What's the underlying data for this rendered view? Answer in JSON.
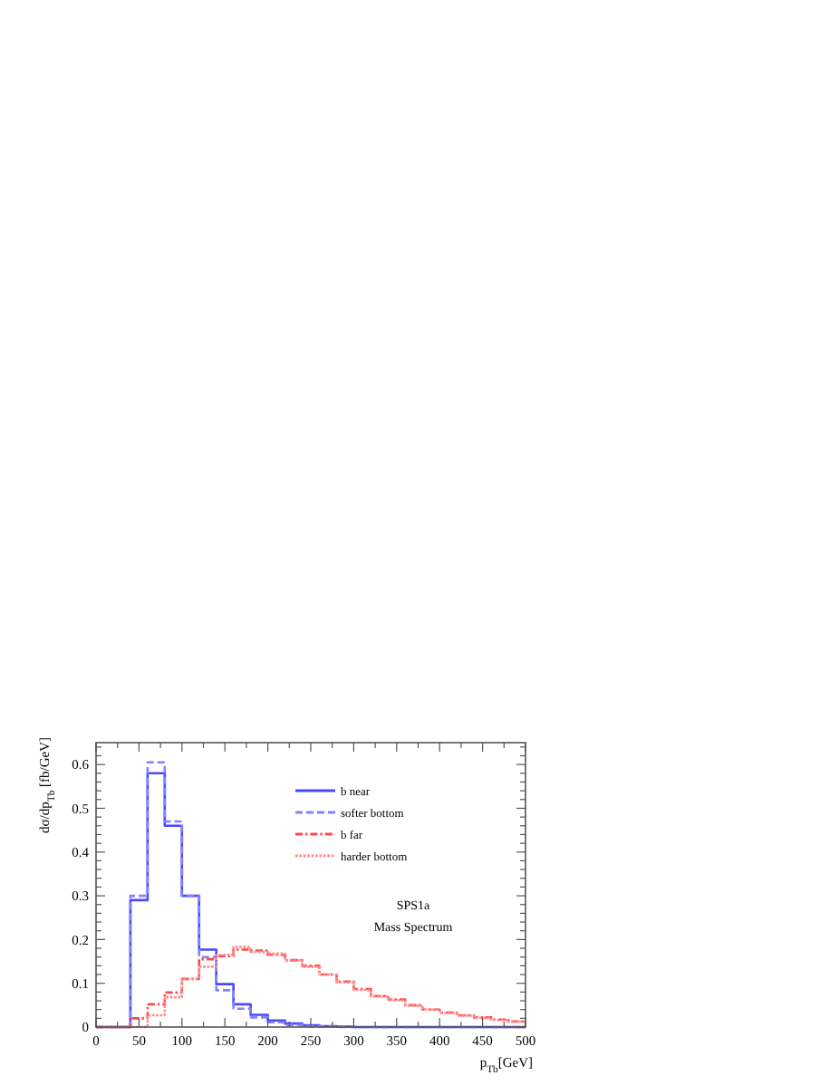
{
  "chart_data": {
    "type": "histogram",
    "xlabel": "p$_{Tb}$[GeV]",
    "ylabel": "dσ/dp$_{Tb}$ [fb/GeV]",
    "bins": [
      0,
      20,
      40,
      60,
      80,
      100,
      120,
      140,
      160,
      180,
      200,
      220,
      240,
      260,
      280,
      300,
      320,
      340,
      360,
      380,
      400,
      420,
      440,
      460,
      480,
      500
    ],
    "series": [
      {
        "name": "b near",
        "color": "#4848ff",
        "line_style": "solid",
        "values": [
          0,
          0,
          0.29,
          0.58,
          0.46,
          0.3,
          0.177,
          0.098,
          0.052,
          0.028,
          0.015,
          0.008,
          0.004,
          0.002,
          0.001,
          0,
          0,
          0,
          0,
          0,
          0,
          0,
          0,
          0,
          0
        ]
      },
      {
        "name": "softer bottom",
        "color": "#8282ff",
        "line_style": "dashed",
        "values": [
          0,
          0,
          0.3,
          0.605,
          0.47,
          0.3,
          0.16,
          0.084,
          0.042,
          0.022,
          0.011,
          0.005,
          0.002,
          0.001,
          0,
          0,
          0,
          0,
          0,
          0,
          0,
          0,
          0,
          0,
          0
        ]
      },
      {
        "name": "b far",
        "color": "#ff4848",
        "line_style": "dashdot",
        "values": [
          0,
          0,
          0.02,
          0.052,
          0.079,
          0.11,
          0.155,
          0.162,
          0.177,
          0.175,
          0.165,
          0.153,
          0.14,
          0.12,
          0.104,
          0.087,
          0.071,
          0.063,
          0.05,
          0.04,
          0.033,
          0.027,
          0.022,
          0.017,
          0.013
        ]
      },
      {
        "name": "harder bottom",
        "color": "#ff8c8c",
        "line_style": "dotted",
        "values": [
          0,
          0,
          0,
          0.027,
          0.068,
          0.11,
          0.138,
          0.165,
          0.183,
          0.172,
          0.168,
          0.152,
          0.138,
          0.12,
          0.102,
          0.085,
          0.07,
          0.061,
          0.049,
          0.04,
          0.032,
          0.026,
          0.021,
          0.016,
          0.012
        ]
      }
    ],
    "xlim": [
      0,
      500
    ],
    "xticks": [
      0,
      {
        "value": 25,
        "label": null
      },
      50,
      {
        "value": 75,
        "label": null
      },
      100,
      {
        "value": 125,
        "label": null
      },
      150,
      {
        "value": 175,
        "label": null
      },
      200,
      {
        "value": 225,
        "label": null
      },
      250,
      {
        "value": 275,
        "label": null
      },
      300,
      {
        "value": 325,
        "label": null
      },
      350,
      {
        "value": 375,
        "label": null
      },
      400,
      {
        "value": 425,
        "label": null
      },
      450,
      {
        "value": 475,
        "label": null
      },
      500
    ],
    "ylim": [
      0,
      0.65
    ],
    "yticks": [
      0,
      {
        "value": 0.02,
        "label": null
      },
      {
        "value": 0.04,
        "label": null
      },
      {
        "value": 0.06,
        "label": null
      },
      {
        "value": 0.08,
        "label": null
      },
      0.1,
      {
        "value": 0.12,
        "label": null
      },
      {
        "value": 0.14,
        "label": null
      },
      {
        "value": 0.16,
        "label": null
      },
      {
        "value": 0.18,
        "label": null
      },
      0.2,
      {
        "value": 0.22,
        "label": null
      },
      {
        "value": 0.24,
        "label": null
      },
      {
        "value": 0.26,
        "label": null
      },
      {
        "value": 0.28,
        "label": null
      },
      0.3,
      {
        "value": 0.32,
        "label": null
      },
      {
        "value": 0.34,
        "label": null
      },
      {
        "value": 0.36,
        "label": null
      },
      {
        "value": 0.38,
        "label": null
      },
      0.4,
      {
        "value": 0.42,
        "label": null
      },
      {
        "value": 0.44,
        "label": null
      },
      {
        "value": 0.46,
        "label": null
      },
      {
        "value": 0.48,
        "label": null
      },
      0.5,
      {
        "value": 0.52,
        "label": null
      },
      {
        "value": 0.54,
        "label": null
      },
      {
        "value": 0.56,
        "label": null
      },
      {
        "value": 0.58,
        "label": null
      },
      0.6,
      {
        "value": 0.62,
        "label": null
      },
      {
        "value": 0.64,
        "label": null
      }
    ],
    "legend": "top right",
    "annotations": [
      "SPS1a",
      "Mass Spectrum"
    ]
  }
}
